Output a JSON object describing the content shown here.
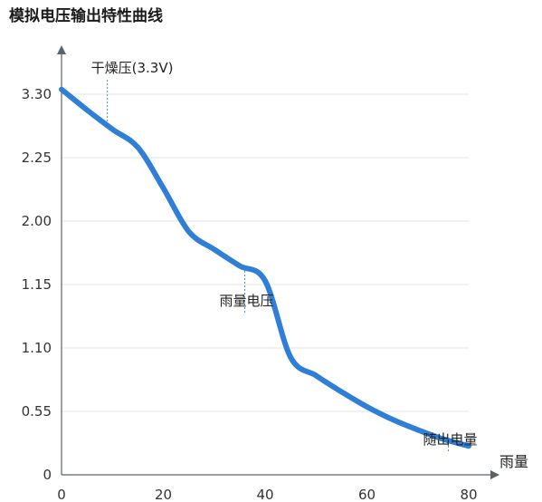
{
  "chart_data": {
    "type": "line",
    "title": "模拟电压输出特性曲线",
    "xlabel": "雨量",
    "ylabel": "",
    "x_ticks": [
      "0",
      "20",
      "40",
      "60",
      "80"
    ],
    "y_ticks": [
      "0",
      "0.55",
      "1.10",
      "1.15",
      "2.00",
      "2.25",
      "3.30"
    ],
    "grid": true,
    "series": [
      {
        "color": "#2f7fd8",
        "x": [
          0,
          5,
          10,
          15,
          20,
          25,
          30,
          35,
          40,
          45,
          50,
          55,
          60,
          65,
          70,
          75,
          80
        ],
        "y": [
          3.38,
          3.04,
          2.72,
          2.42,
          2.13,
          1.86,
          1.62,
          1.4,
          1.2,
          1.02,
          0.86,
          0.72,
          0.59,
          0.48,
          0.39,
          0.31,
          0.25
        ]
      }
    ],
    "annotations": [
      {
        "text": "干燥压(3.3V)",
        "x": 9
      },
      {
        "text": "雨量电压",
        "x": 36
      },
      {
        "text": "随出电量",
        "x": 76
      }
    ]
  }
}
